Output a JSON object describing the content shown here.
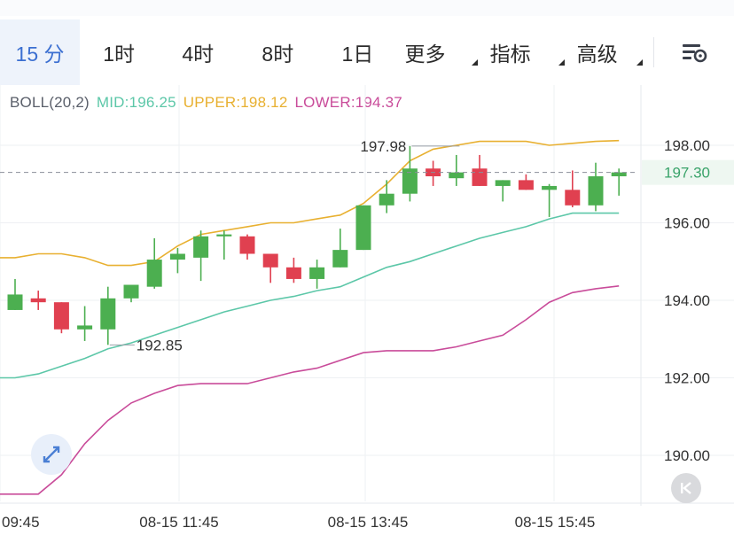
{
  "toolbar": {
    "tabs": [
      {
        "label": "15 分",
        "active": true
      },
      {
        "label": "1时"
      },
      {
        "label": "4时"
      },
      {
        "label": "8时"
      },
      {
        "label": "1日"
      },
      {
        "label": "更多",
        "dropdown": true
      },
      {
        "label": "指标",
        "dropdown": true
      },
      {
        "label": "高级",
        "dropdown": true
      }
    ],
    "settings_icon": "chart-settings-icon"
  },
  "indicator": {
    "name": "BOLL(20,2)",
    "mid": "MID:196.25",
    "upper": "UPPER:198.12",
    "lower": "LOWER:194.37"
  },
  "colors": {
    "up": "#4caf50",
    "down": "#e04050",
    "mid": "#5cc7a8",
    "upper": "#e8b030",
    "lower": "#c94c9a",
    "accent": "#3b6fd1",
    "grid": "#eef0f3",
    "axis_text": "#333333",
    "price_tag": "#3aa36a"
  },
  "chart_data": {
    "type": "candlestick",
    "y_ticks": [
      198.0,
      196.0,
      194.0,
      192.0,
      190.0
    ],
    "y_tick_labels": [
      "198.00",
      "196.00",
      "194.00",
      "192.00",
      "190.00"
    ],
    "x_labels": [
      "09:45",
      "08-15 11:45",
      "08-15 13:45",
      "08-15 15:45"
    ],
    "current_price": "197.30",
    "high_marker": "197.98",
    "low_marker": "192.85",
    "candles": [
      {
        "o": 193.75,
        "c": 194.15,
        "h": 194.55,
        "l": 193.75
      },
      {
        "o": 194.05,
        "c": 193.95,
        "h": 194.25,
        "l": 193.75
      },
      {
        "o": 193.95,
        "c": 193.25,
        "h": 193.95,
        "l": 193.15
      },
      {
        "o": 193.25,
        "c": 193.35,
        "h": 193.85,
        "l": 192.95
      },
      {
        "o": 193.25,
        "c": 194.05,
        "h": 194.35,
        "l": 192.85
      },
      {
        "o": 194.05,
        "c": 194.4,
        "h": 194.4,
        "l": 193.95
      },
      {
        "o": 194.35,
        "c": 195.05,
        "h": 195.6,
        "l": 194.3
      },
      {
        "o": 195.05,
        "c": 195.2,
        "h": 195.35,
        "l": 194.7
      },
      {
        "o": 195.1,
        "c": 195.65,
        "h": 195.8,
        "l": 194.5
      },
      {
        "o": 195.65,
        "c": 195.7,
        "h": 195.8,
        "l": 195.05
      },
      {
        "o": 195.65,
        "c": 195.2,
        "h": 195.7,
        "l": 195.05
      },
      {
        "o": 195.2,
        "c": 194.85,
        "h": 195.2,
        "l": 194.45
      },
      {
        "o": 194.85,
        "c": 194.55,
        "h": 195.1,
        "l": 194.45
      },
      {
        "o": 194.55,
        "c": 194.85,
        "h": 195.05,
        "l": 194.3
      },
      {
        "o": 194.85,
        "c": 195.3,
        "h": 195.85,
        "l": 194.85
      },
      {
        "o": 195.3,
        "c": 196.45,
        "h": 196.45,
        "l": 195.3
      },
      {
        "o": 196.45,
        "c": 196.75,
        "h": 197.1,
        "l": 196.25
      },
      {
        "o": 196.75,
        "c": 197.4,
        "h": 197.98,
        "l": 196.55
      },
      {
        "o": 197.4,
        "c": 197.2,
        "h": 197.6,
        "l": 196.95
      },
      {
        "o": 197.15,
        "c": 197.3,
        "h": 197.75,
        "l": 196.95
      },
      {
        "o": 197.4,
        "c": 196.95,
        "h": 197.75,
        "l": 196.95
      },
      {
        "o": 196.95,
        "c": 197.1,
        "h": 197.1,
        "l": 196.55
      },
      {
        "o": 197.1,
        "c": 196.85,
        "h": 197.25,
        "l": 196.85
      },
      {
        "o": 196.85,
        "c": 196.95,
        "h": 197.0,
        "l": 196.15
      },
      {
        "o": 196.85,
        "c": 196.45,
        "h": 197.35,
        "l": 196.4
      },
      {
        "o": 196.45,
        "c": 197.2,
        "h": 197.55,
        "l": 196.3
      },
      {
        "o": 197.2,
        "c": 197.3,
        "h": 197.4,
        "l": 196.7
      }
    ],
    "upper": [
      195.1,
      195.2,
      195.2,
      195.1,
      194.9,
      194.9,
      195.0,
      195.4,
      195.7,
      195.8,
      195.9,
      196.0,
      196.0,
      196.1,
      196.2,
      196.5,
      197.0,
      197.6,
      197.9,
      198.0,
      198.1,
      198.1,
      198.1,
      198.0,
      198.05,
      198.1,
      198.12
    ],
    "mid": [
      192.0,
      192.1,
      192.3,
      192.5,
      192.75,
      192.9,
      193.1,
      193.3,
      193.5,
      193.7,
      193.85,
      194.0,
      194.1,
      194.25,
      194.35,
      194.6,
      194.85,
      195.0,
      195.2,
      195.4,
      195.6,
      195.75,
      195.9,
      196.1,
      196.25,
      196.25,
      196.25
    ],
    "lower": [
      189.0,
      189.0,
      189.5,
      190.3,
      190.9,
      191.35,
      191.6,
      191.8,
      191.85,
      191.85,
      191.85,
      192.0,
      192.15,
      192.25,
      192.45,
      192.65,
      192.7,
      192.7,
      192.7,
      192.8,
      192.95,
      193.1,
      193.5,
      193.95,
      194.2,
      194.3,
      194.37
    ]
  }
}
